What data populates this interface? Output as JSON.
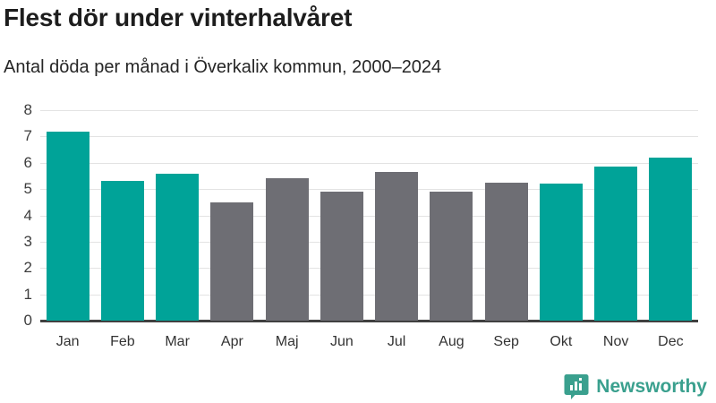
{
  "header": {
    "title": "Flest dör under vinterhalvåret",
    "subtitle": "Antal döda per månad i Överkalix kommun, 2000–2024"
  },
  "chart_data": {
    "type": "bar",
    "title": "Flest dör under vinterhalvåret",
    "subtitle": "Antal döda per månad i Överkalix kommun, 2000–2024",
    "categories": [
      "Jan",
      "Feb",
      "Mar",
      "Apr",
      "Maj",
      "Jun",
      "Jul",
      "Aug",
      "Sep",
      "Okt",
      "Nov",
      "Dec"
    ],
    "values": [
      7.2,
      5.3,
      5.6,
      4.5,
      5.4,
      4.9,
      5.65,
      4.9,
      5.25,
      5.2,
      5.85,
      6.2
    ],
    "highlighted": [
      true,
      true,
      true,
      false,
      false,
      false,
      false,
      false,
      false,
      true,
      true,
      true
    ],
    "xlabel": "",
    "ylabel": "",
    "ylim": [
      0,
      8
    ],
    "yticks": [
      0,
      1,
      2,
      3,
      4,
      5,
      6,
      7,
      8
    ],
    "grid": true,
    "legend": "none",
    "colors": {
      "highlight": "#00a398",
      "base": "#6e6e74",
      "gridline": "#e3e3e3",
      "axis_line": "#404040"
    }
  },
  "branding": {
    "logo_text": "Newsworthy",
    "logo_color": "#3aa08e",
    "logo_icon": "speech-bubble-bar-chart-icon"
  }
}
